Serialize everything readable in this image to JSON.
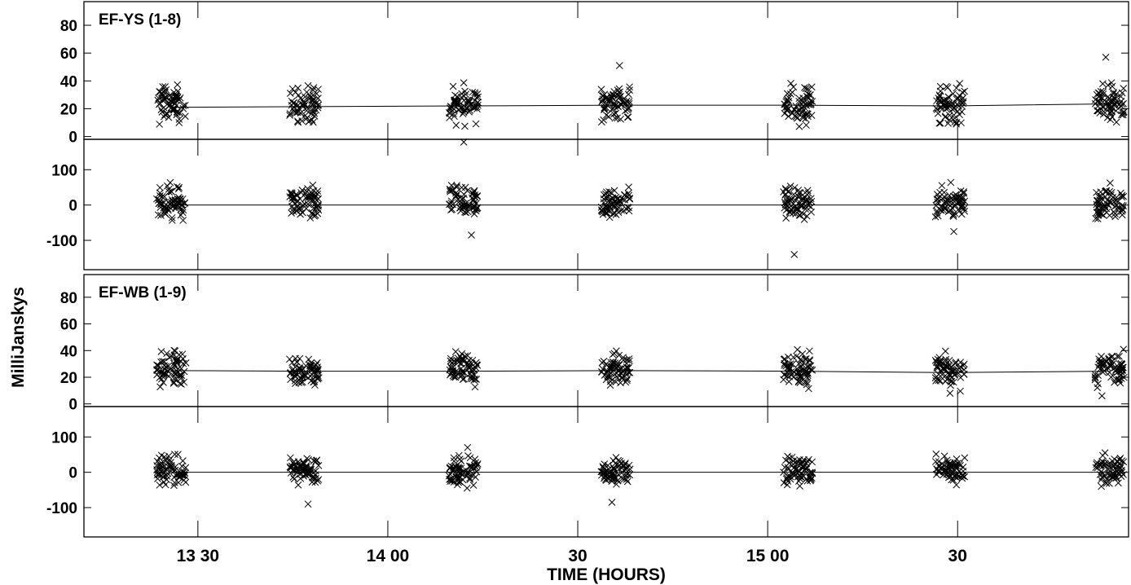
{
  "chart_data": {
    "type": "scatter",
    "xlabel": "TIME (HOURS)",
    "ylabel": "MilliJanskys",
    "x_axis": {
      "range_hours": [
        13.2,
        15.95
      ],
      "ticks": [
        {
          "t": 13.5,
          "label": "13 30"
        },
        {
          "t": 14.0,
          "label": "14 00"
        },
        {
          "t": 14.5,
          "label": "30"
        },
        {
          "t": 15.0,
          "label": "15 00"
        },
        {
          "t": 15.5,
          "label": "30"
        }
      ]
    },
    "scan_times_hours": [
      13.43,
      13.78,
      14.2,
      14.6,
      15.08,
      15.48,
      15.9
    ],
    "baselines": [
      {
        "label": "EF-YS (1-8)",
        "amplitude": {
          "ylim": [
            -2,
            97
          ],
          "ticks": [
            0,
            20,
            40,
            60,
            80
          ],
          "model": [
            21,
            21.5,
            22,
            22.5,
            22.5,
            22,
            23.5
          ],
          "scatter_range": [
            5,
            43
          ],
          "outliers": [
            [
              14.61,
              51
            ],
            [
              15.89,
              57
            ],
            [
              14.2,
              -4
            ]
          ]
        },
        "phase": {
          "ylim": [
            -183,
            186
          ],
          "ticks": [
            -100,
            0,
            100
          ],
          "model": [
            0,
            0,
            0,
            0,
            0,
            0,
            0
          ],
          "scatter_range": [
            -60,
            75
          ],
          "outliers": [
            [
              15.07,
              -140
            ],
            [
              14.22,
              -85
            ],
            [
              15.49,
              -75
            ]
          ]
        }
      },
      {
        "label": "EF-WB (1-9)",
        "amplitude": {
          "ylim": [
            -2,
            97
          ],
          "ticks": [
            0,
            20,
            40,
            60,
            80
          ],
          "model": [
            25,
            24.5,
            24.5,
            25,
            24.5,
            23.5,
            24.5
          ],
          "scatter_range": [
            8,
            45
          ],
          "outliers": [
            [
              15.48,
              8
            ],
            [
              15.88,
              6
            ]
          ]
        },
        "phase": {
          "ylim": [
            -183,
            186
          ],
          "ticks": [
            -100,
            0,
            100
          ],
          "model": [
            0,
            0,
            0,
            0,
            0,
            0,
            0
          ],
          "scatter_range": [
            -50,
            65
          ],
          "outliers": [
            [
              14.59,
              -85
            ],
            [
              13.79,
              -90
            ],
            [
              14.21,
              70
            ]
          ]
        }
      }
    ],
    "grid": false,
    "legend": "none",
    "marker": "x",
    "color": "#000000"
  }
}
